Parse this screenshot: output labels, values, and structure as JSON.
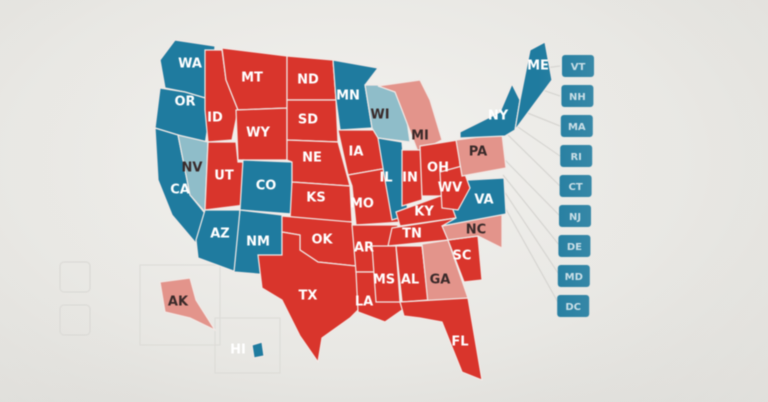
{
  "colors": {
    "republican": "#d9352c",
    "democrat": "#1f7b9f",
    "lean_democrat": "#8fbdc9",
    "lean_republican": "#e3948b",
    "background": "#ebeae6"
  },
  "states": [
    {
      "abbr": "WA",
      "winner": "democrat"
    },
    {
      "abbr": "OR",
      "winner": "democrat"
    },
    {
      "abbr": "CA",
      "winner": "democrat"
    },
    {
      "abbr": "NV",
      "winner": "lean_democrat"
    },
    {
      "abbr": "ID",
      "winner": "republican"
    },
    {
      "abbr": "MT",
      "winner": "republican"
    },
    {
      "abbr": "WY",
      "winner": "republican"
    },
    {
      "abbr": "UT",
      "winner": "republican"
    },
    {
      "abbr": "CO",
      "winner": "democrat"
    },
    {
      "abbr": "AZ",
      "winner": "democrat"
    },
    {
      "abbr": "NM",
      "winner": "democrat"
    },
    {
      "abbr": "ND",
      "winner": "republican"
    },
    {
      "abbr": "SD",
      "winner": "republican"
    },
    {
      "abbr": "NE",
      "winner": "republican"
    },
    {
      "abbr": "KS",
      "winner": "republican"
    },
    {
      "abbr": "OK",
      "winner": "republican"
    },
    {
      "abbr": "TX",
      "winner": "republican"
    },
    {
      "abbr": "MN",
      "winner": "democrat"
    },
    {
      "abbr": "IA",
      "winner": "republican"
    },
    {
      "abbr": "MO",
      "winner": "republican"
    },
    {
      "abbr": "AR",
      "winner": "republican"
    },
    {
      "abbr": "LA",
      "winner": "republican"
    },
    {
      "abbr": "WI",
      "winner": "lean_democrat"
    },
    {
      "abbr": "IL",
      "winner": "democrat"
    },
    {
      "abbr": "MI",
      "winner": "lean_republican"
    },
    {
      "abbr": "IN",
      "winner": "republican"
    },
    {
      "abbr": "OH",
      "winner": "republican"
    },
    {
      "abbr": "KY",
      "winner": "republican"
    },
    {
      "abbr": "TN",
      "winner": "republican"
    },
    {
      "abbr": "MS",
      "winner": "republican"
    },
    {
      "abbr": "AL",
      "winner": "republican"
    },
    {
      "abbr": "GA",
      "winner": "lean_republican"
    },
    {
      "abbr": "FL",
      "winner": "republican"
    },
    {
      "abbr": "SC",
      "winner": "republican"
    },
    {
      "abbr": "NC",
      "winner": "lean_republican"
    },
    {
      "abbr": "VA",
      "winner": "democrat"
    },
    {
      "abbr": "WV",
      "winner": "republican"
    },
    {
      "abbr": "PA",
      "winner": "lean_republican"
    },
    {
      "abbr": "NY",
      "winner": "democrat"
    },
    {
      "abbr": "ME",
      "winner": "democrat"
    },
    {
      "abbr": "AK",
      "winner": "lean_republican"
    },
    {
      "abbr": "HI",
      "winner": "democrat"
    }
  ],
  "small_states": [
    {
      "abbr": "VT",
      "winner": "democrat"
    },
    {
      "abbr": "NH",
      "winner": "democrat"
    },
    {
      "abbr": "MA",
      "winner": "democrat"
    },
    {
      "abbr": "RI",
      "winner": "democrat"
    },
    {
      "abbr": "CT",
      "winner": "democrat"
    },
    {
      "abbr": "NJ",
      "winner": "democrat"
    },
    {
      "abbr": "DE",
      "winner": "democrat"
    },
    {
      "abbr": "MD",
      "winner": "democrat"
    },
    {
      "abbr": "DC",
      "winner": "democrat"
    }
  ]
}
